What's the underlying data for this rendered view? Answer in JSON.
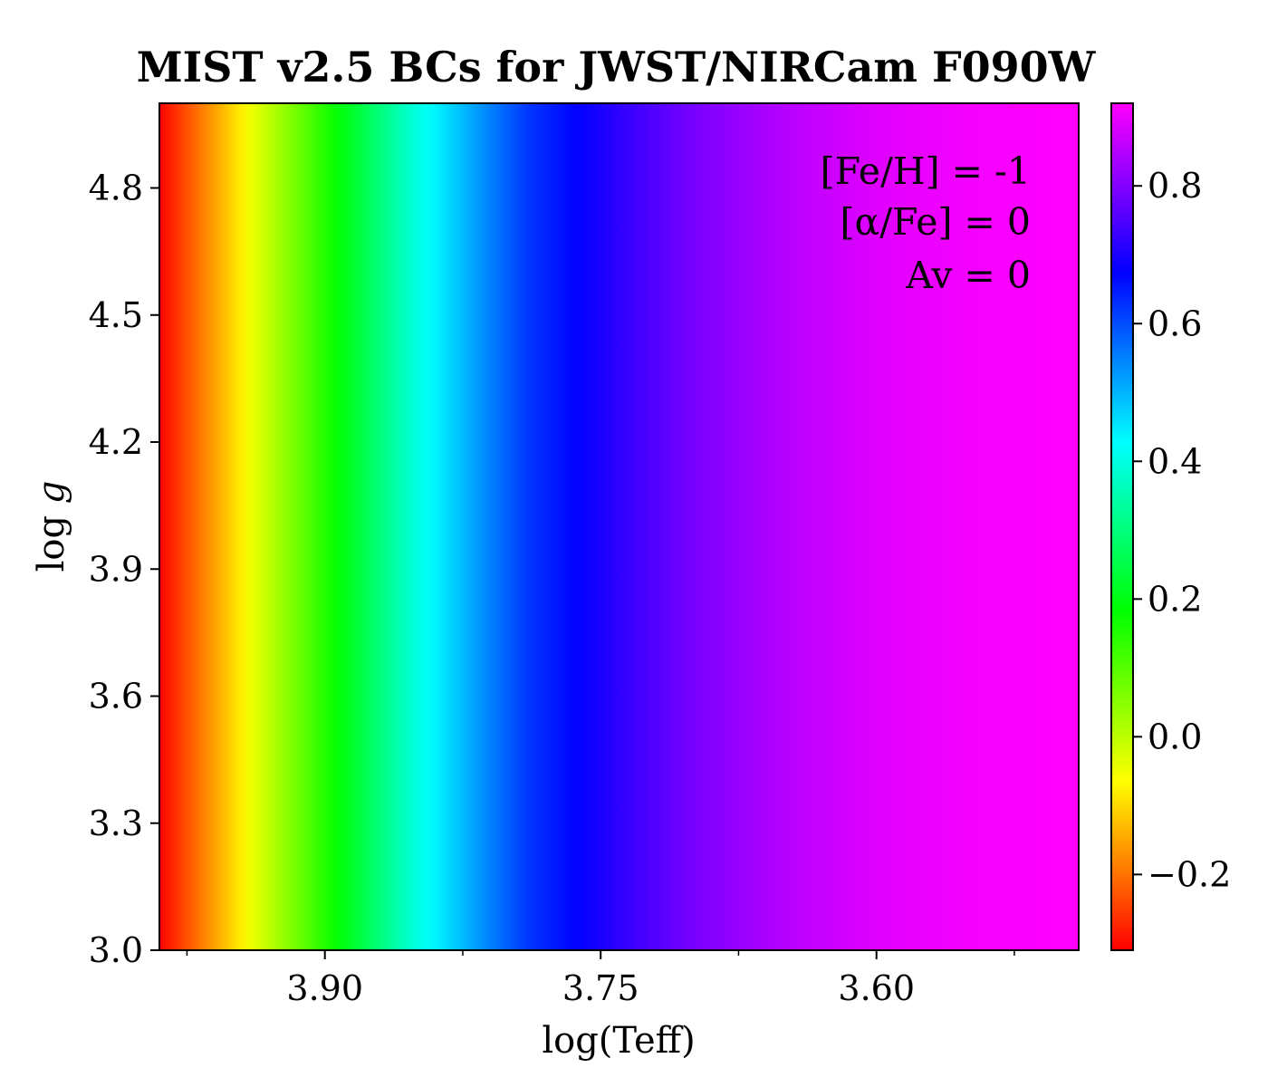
{
  "chart_data": {
    "type": "heatmap",
    "title": "MIST v2.5 BCs for JWST/NIRCam F090W",
    "xlabel": "log(Teff)",
    "ylabel_prefix": "log ",
    "ylabel_var": "g",
    "x_axis_reversed": true,
    "xlim": [
      3.99,
      3.49
    ],
    "ylim": [
      3.0,
      5.0
    ],
    "x_ticks": [
      3.9,
      3.75,
      3.6
    ],
    "x_tick_labels": [
      "3.90",
      "3.75",
      "3.60"
    ],
    "x_minor_ticks": [
      3.975,
      3.825,
      3.675,
      3.525
    ],
    "y_ticks": [
      3.0,
      3.3,
      3.6,
      3.9,
      4.2,
      4.5,
      4.8
    ],
    "y_tick_labels": [
      "3.0",
      "3.3",
      "3.6",
      "3.9",
      "4.2",
      "4.5",
      "4.8"
    ],
    "colorbar": {
      "colormap": "gist_rainbow",
      "range": [
        -0.31,
        0.92
      ],
      "ticks": [
        -0.2,
        0.0,
        0.2,
        0.4,
        0.6,
        0.8
      ],
      "tick_labels": [
        "−0.2",
        "0.0",
        "0.2",
        "0.4",
        "0.6",
        "0.8"
      ]
    },
    "bc_profile": {
      "log_teff": [
        3.99,
        3.94,
        3.9,
        3.89,
        3.87,
        3.85,
        3.81,
        3.79,
        3.77,
        3.75,
        3.7,
        3.65,
        3.6,
        3.55,
        3.49
      ],
      "bc": [
        -0.31,
        -0.05,
        0.15,
        0.2,
        0.3,
        0.4,
        0.55,
        0.62,
        0.66,
        0.7,
        0.79,
        0.85,
        0.89,
        0.91,
        0.92
      ]
    },
    "annotations": [
      "[Fe/H] = -1",
      "[α/Fe] = 0",
      "Av = 0"
    ],
    "grid": false
  }
}
